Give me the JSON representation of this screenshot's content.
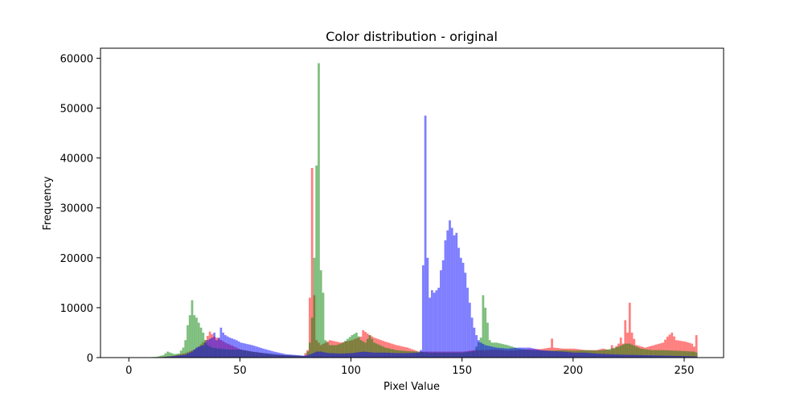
{
  "chart_data": {
    "type": "bar",
    "subtype": "overlapping-histogram",
    "title": "Color distribution - original",
    "xlabel": "Pixel Value",
    "ylabel": "Frequency",
    "xlim": [
      -12.75,
      267.75
    ],
    "ylim": [
      0,
      62000
    ],
    "xticks": [
      0,
      50,
      100,
      150,
      200,
      250
    ],
    "yticks": [
      0,
      10000,
      20000,
      30000,
      40000,
      50000,
      60000
    ],
    "xtick_labels": [
      "0",
      "50",
      "100",
      "150",
      "200",
      "250"
    ],
    "ytick_labels": [
      "0",
      "10000",
      "20000",
      "30000",
      "40000",
      "50000",
      "60000"
    ],
    "bin_width": 1,
    "opacity": 0.5,
    "legend": "none",
    "grid": false,
    "series": [
      {
        "name": "red",
        "color": "#ff0000",
        "points": [
          [
            8,
            0
          ],
          [
            12,
            50
          ],
          [
            16,
            200
          ],
          [
            20,
            400
          ],
          [
            25,
            900
          ],
          [
            30,
            1800
          ],
          [
            34,
            3500
          ],
          [
            36,
            5200
          ],
          [
            38,
            4200
          ],
          [
            40,
            3800
          ],
          [
            43,
            3000
          ],
          [
            47,
            2200
          ],
          [
            50,
            1600
          ],
          [
            55,
            1200
          ],
          [
            60,
            900
          ],
          [
            65,
            600
          ],
          [
            70,
            450
          ],
          [
            75,
            400
          ],
          [
            78,
            300
          ],
          [
            80,
            1500
          ],
          [
            81,
            12000
          ],
          [
            82,
            38000
          ],
          [
            83,
            12500
          ],
          [
            84,
            3500
          ],
          [
            86,
            2500
          ],
          [
            88,
            3000
          ],
          [
            90,
            3500
          ],
          [
            95,
            3000
          ],
          [
            100,
            3500
          ],
          [
            104,
            4200
          ],
          [
            105,
            5500
          ],
          [
            108,
            4500
          ],
          [
            110,
            4000
          ],
          [
            115,
            3200
          ],
          [
            120,
            2500
          ],
          [
            125,
            2000
          ],
          [
            130,
            1200
          ],
          [
            140,
            1200
          ],
          [
            150,
            1200
          ],
          [
            155,
            1500
          ],
          [
            160,
            1500
          ],
          [
            165,
            1600
          ],
          [
            170,
            1400
          ],
          [
            175,
            1500
          ],
          [
            180,
            1700
          ],
          [
            185,
            1700
          ],
          [
            189,
            2000
          ],
          [
            190,
            3800
          ],
          [
            191,
            2000
          ],
          [
            195,
            1800
          ],
          [
            200,
            1800
          ],
          [
            205,
            1500
          ],
          [
            208,
            1500
          ],
          [
            210,
            1500
          ],
          [
            213,
            1800
          ],
          [
            216,
            1500
          ],
          [
            217,
            2500
          ],
          [
            218,
            1800
          ],
          [
            220,
            2800
          ],
          [
            221,
            4000
          ],
          [
            222,
            2800
          ],
          [
            223,
            7500
          ],
          [
            224,
            5000
          ],
          [
            225,
            11000
          ],
          [
            226,
            5000
          ],
          [
            228,
            2500
          ],
          [
            232,
            2000
          ],
          [
            236,
            2500
          ],
          [
            240,
            3000
          ],
          [
            242,
            4200
          ],
          [
            244,
            5000
          ],
          [
            246,
            3500
          ],
          [
            250,
            3200
          ],
          [
            253,
            2800
          ],
          [
            254,
            2200
          ],
          [
            255,
            4500
          ]
        ]
      },
      {
        "name": "green",
        "color": "#008000",
        "points": [
          [
            5,
            0
          ],
          [
            8,
            50
          ],
          [
            12,
            150
          ],
          [
            15,
            500
          ],
          [
            17,
            1200
          ],
          [
            20,
            700
          ],
          [
            22,
            800
          ],
          [
            24,
            2000
          ],
          [
            25,
            3500
          ],
          [
            26,
            6500
          ],
          [
            27,
            8500
          ],
          [
            28,
            11500
          ],
          [
            29,
            8500
          ],
          [
            30,
            8000
          ],
          [
            31,
            7000
          ],
          [
            32,
            6000
          ],
          [
            33,
            5000
          ],
          [
            34,
            3500
          ],
          [
            35,
            2500
          ],
          [
            37,
            2000
          ],
          [
            40,
            1800
          ],
          [
            45,
            1600
          ],
          [
            50,
            1600
          ],
          [
            55,
            1200
          ],
          [
            60,
            900
          ],
          [
            65,
            700
          ],
          [
            70,
            500
          ],
          [
            75,
            400
          ],
          [
            79,
            300
          ],
          [
            80,
            1200
          ],
          [
            81,
            3000
          ],
          [
            82,
            8000
          ],
          [
            83,
            20000
          ],
          [
            84,
            38500
          ],
          [
            85,
            59000
          ],
          [
            86,
            17500
          ],
          [
            87,
            13000
          ],
          [
            88,
            3500
          ],
          [
            90,
            2500
          ],
          [
            93,
            2500
          ],
          [
            96,
            3000
          ],
          [
            100,
            4500
          ],
          [
            102,
            5000
          ],
          [
            104,
            3500
          ],
          [
            106,
            3000
          ],
          [
            108,
            4500
          ],
          [
            110,
            3000
          ],
          [
            115,
            2000
          ],
          [
            120,
            1500
          ],
          [
            125,
            1300
          ],
          [
            130,
            1200
          ],
          [
            135,
            1000
          ],
          [
            140,
            1000
          ],
          [
            145,
            1000
          ],
          [
            150,
            1000
          ],
          [
            155,
            1300
          ],
          [
            158,
            4000
          ],
          [
            159,
            12500
          ],
          [
            160,
            10000
          ],
          [
            161,
            7000
          ],
          [
            162,
            3500
          ],
          [
            163,
            3000
          ],
          [
            165,
            3000
          ],
          [
            170,
            2500
          ],
          [
            175,
            1800
          ],
          [
            180,
            1500
          ],
          [
            185,
            1400
          ],
          [
            190,
            1400
          ],
          [
            195,
            1500
          ],
          [
            200,
            1400
          ],
          [
            205,
            1500
          ],
          [
            210,
            1400
          ],
          [
            215,
            1600
          ],
          [
            220,
            2200
          ],
          [
            223,
            2800
          ],
          [
            225,
            2800
          ],
          [
            230,
            1800
          ],
          [
            235,
            1500
          ],
          [
            240,
            1500
          ],
          [
            245,
            1400
          ],
          [
            250,
            1300
          ],
          [
            254,
            1200
          ],
          [
            255,
            1000
          ]
        ]
      },
      {
        "name": "blue",
        "color": "#0000ff",
        "points": [
          [
            10,
            0
          ],
          [
            15,
            100
          ],
          [
            20,
            300
          ],
          [
            25,
            600
          ],
          [
            28,
            1200
          ],
          [
            30,
            2000
          ],
          [
            33,
            2500
          ],
          [
            35,
            3500
          ],
          [
            37,
            4000
          ],
          [
            38,
            5000
          ],
          [
            39,
            3500
          ],
          [
            40,
            4000
          ],
          [
            41,
            6000
          ],
          [
            42,
            5000
          ],
          [
            43,
            4500
          ],
          [
            45,
            4000
          ],
          [
            48,
            3500
          ],
          [
            50,
            3000
          ],
          [
            55,
            2500
          ],
          [
            60,
            1800
          ],
          [
            65,
            1200
          ],
          [
            70,
            700
          ],
          [
            75,
            500
          ],
          [
            78,
            400
          ],
          [
            80,
            500
          ],
          [
            82,
            800
          ],
          [
            84,
            1200
          ],
          [
            86,
            1200
          ],
          [
            88,
            1000
          ],
          [
            90,
            900
          ],
          [
            95,
            800
          ],
          [
            100,
            900
          ],
          [
            105,
            1200
          ],
          [
            110,
            1000
          ],
          [
            115,
            1000
          ],
          [
            120,
            900
          ],
          [
            125,
            900
          ],
          [
            130,
            1000
          ],
          [
            131,
            1500
          ],
          [
            132,
            18500
          ],
          [
            133,
            48500
          ],
          [
            134,
            20000
          ],
          [
            135,
            12000
          ],
          [
            136,
            13500
          ],
          [
            137,
            13000
          ],
          [
            138,
            13500
          ],
          [
            139,
            14000
          ],
          [
            140,
            17500
          ],
          [
            141,
            19500
          ],
          [
            142,
            23500
          ],
          [
            143,
            25500
          ],
          [
            144,
            27500
          ],
          [
            145,
            26000
          ],
          [
            146,
            24500
          ],
          [
            147,
            25000
          ],
          [
            148,
            22000
          ],
          [
            149,
            20000
          ],
          [
            150,
            19000
          ],
          [
            151,
            17000
          ],
          [
            152,
            14000
          ],
          [
            153,
            11000
          ],
          [
            154,
            8000
          ],
          [
            155,
            6000
          ],
          [
            156,
            4500
          ],
          [
            157,
            3500
          ],
          [
            158,
            3000
          ],
          [
            160,
            2500
          ],
          [
            165,
            2000
          ],
          [
            170,
            1800
          ],
          [
            175,
            2000
          ],
          [
            180,
            2000
          ],
          [
            185,
            1500
          ],
          [
            190,
            1300
          ],
          [
            195,
            1200
          ],
          [
            200,
            1000
          ],
          [
            205,
            1000
          ],
          [
            210,
            800
          ],
          [
            215,
            700
          ],
          [
            220,
            600
          ],
          [
            230,
            500
          ],
          [
            240,
            400
          ],
          [
            250,
            300
          ],
          [
            255,
            200
          ]
        ]
      }
    ]
  }
}
